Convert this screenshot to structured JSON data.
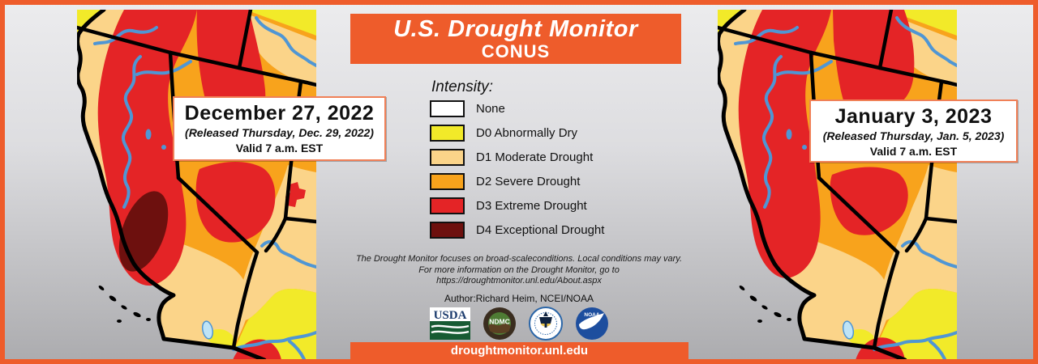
{
  "banner": {
    "title": "U.S. Drought Monitor",
    "subtitle": "CONUS",
    "bg": "#EE5C2B"
  },
  "maps": {
    "left": {
      "date": "December 27, 2022",
      "released": "(Released Thursday, Dec. 29, 2022)",
      "valid": "Valid 7 a.m. EST"
    },
    "right": {
      "date": "January 3, 2023",
      "released": "(Released Thursday, Jan. 5, 2023)",
      "valid": "Valid 7 a.m. EST"
    }
  },
  "legend": {
    "heading": "Intensity:",
    "items": [
      {
        "label": "None",
        "color": "#FFFFFF"
      },
      {
        "label": "D0 Abnormally Dry",
        "color": "#F2EA29"
      },
      {
        "label": "D1 Moderate Drought",
        "color": "#FBD489"
      },
      {
        "label": "D2 Severe Drought",
        "color": "#F8A31C"
      },
      {
        "label": "D3 Extreme Drought",
        "color": "#E42426"
      },
      {
        "label": "D4 Exceptional Drought",
        "color": "#6D100E"
      }
    ]
  },
  "notes": {
    "line1": "The Drought Monitor focuses on broad-scaleconditions. Local conditions may vary.",
    "line2": "For more information on the Drought Monitor, go to",
    "line3": "https://droughtmonitor.unl.edu/About.aspx",
    "author": "Author:Richard Heim, NCEI/NOAA"
  },
  "footer": {
    "url": "droughtmonitor.unl.edu"
  },
  "logos": {
    "usda": "USDA",
    "ndmc": "NDMC",
    "noaa": "NOAA"
  },
  "palette": {
    "none": "#FFFFFF",
    "d0": "#F2EA29",
    "d1": "#FBD489",
    "d2": "#F8A31C",
    "d3": "#E42426",
    "d4": "#6D100E",
    "river": "#4F96D4",
    "lake_light": "#BFE4F6",
    "line": "#000000",
    "frame": "#EE5C2B"
  }
}
